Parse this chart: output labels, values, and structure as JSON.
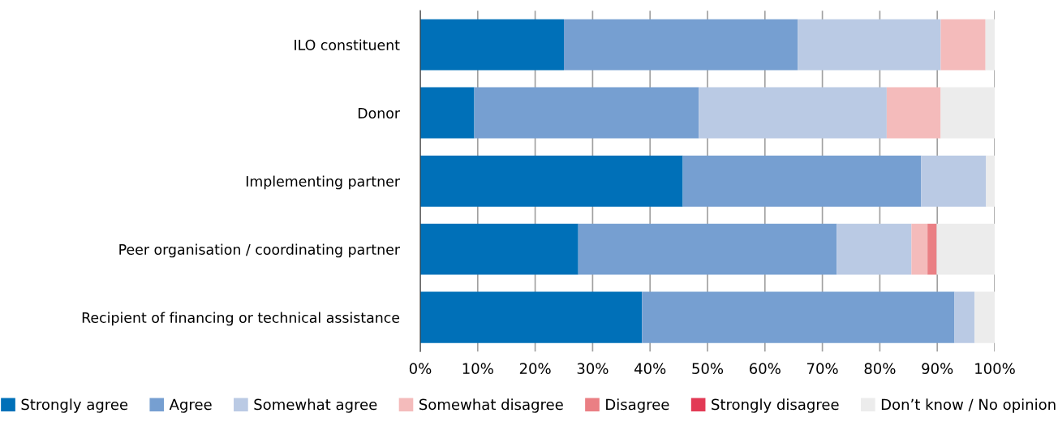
{
  "chart_data": {
    "type": "bar",
    "orientation": "horizontal",
    "stacked": true,
    "categories": [
      "ILO constituent",
      "Donor",
      "Implementing partner",
      "Peer organisation / coordinating partner",
      "Recipient of financing or technical assistance"
    ],
    "series": [
      {
        "name": "Strongly agree",
        "color": "#0070b8",
        "values": [
          25.0,
          9.4,
          45.7,
          27.5,
          38.6
        ]
      },
      {
        "name": "Agree",
        "color": "#769fd1",
        "values": [
          40.7,
          39.1,
          41.5,
          45.0,
          54.4
        ]
      },
      {
        "name": "Somewhat agree",
        "color": "#bacae4",
        "values": [
          24.9,
          32.7,
          11.3,
          13.0,
          3.5
        ]
      },
      {
        "name": "Somewhat disagree",
        "color": "#f4bbbb",
        "values": [
          7.8,
          9.4,
          0,
          2.8,
          0
        ]
      },
      {
        "name": "Disagree",
        "color": "#ea7f84",
        "values": [
          0,
          0,
          0,
          1.6,
          0
        ]
      },
      {
        "name": "Strongly disagree",
        "color": "#e23a55",
        "values": [
          0,
          0,
          0,
          0,
          0
        ]
      },
      {
        "name": "Don’t know / No opinion",
        "color": "#ececec",
        "values": [
          1.6,
          9.4,
          1.5,
          10.1,
          3.5
        ]
      }
    ],
    "xlim": [
      0,
      100
    ],
    "xticks": [
      {
        "value": 0,
        "label": "0%"
      },
      {
        "value": 10,
        "label": "10%"
      },
      {
        "value": 20,
        "label": "20%"
      },
      {
        "value": 30,
        "label": "30%"
      },
      {
        "value": 40,
        "label": "40%"
      },
      {
        "value": 50,
        "label": "50%"
      },
      {
        "value": 60,
        "label": "60%"
      },
      {
        "value": 70,
        "label": "70%"
      },
      {
        "value": 80,
        "label": "80%"
      },
      {
        "value": 90,
        "label": "90%"
      },
      {
        "value": 100,
        "label": "100%"
      }
    ],
    "grid": "x",
    "legend": "bottom"
  }
}
